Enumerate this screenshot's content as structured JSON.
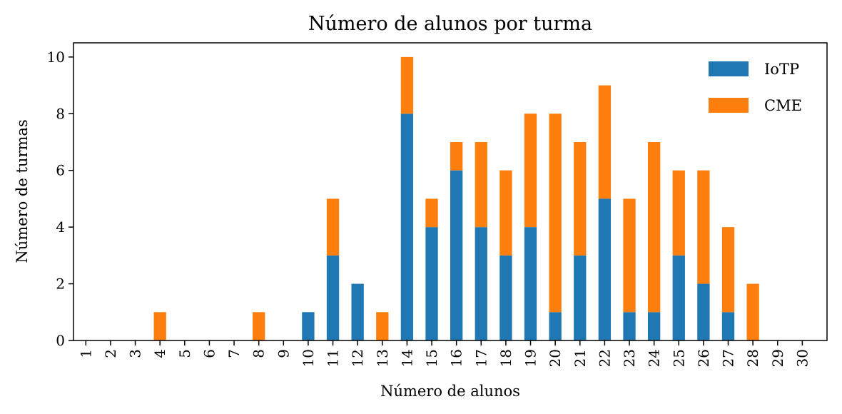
{
  "chart_data": {
    "type": "bar",
    "stacked": true,
    "title": "Número de alunos por turma",
    "xlabel": "Número de alunos",
    "ylabel": "Número de turmas",
    "categories": [
      "1",
      "2",
      "3",
      "4",
      "5",
      "6",
      "7",
      "8",
      "9",
      "10",
      "11",
      "12",
      "13",
      "14",
      "15",
      "16",
      "17",
      "18",
      "19",
      "20",
      "21",
      "22",
      "23",
      "24",
      "25",
      "26",
      "27",
      "28",
      "29",
      "30"
    ],
    "series": [
      {
        "name": "IoTP",
        "color": "#1f77b4",
        "values": [
          0,
          0,
          0,
          0,
          0,
          0,
          0,
          0,
          0,
          1,
          3,
          2,
          0,
          8,
          4,
          6,
          4,
          3,
          4,
          1,
          3,
          5,
          1,
          1,
          3,
          2,
          1,
          0,
          0,
          0
        ]
      },
      {
        "name": "CME",
        "color": "#ff7f0e",
        "values": [
          0,
          0,
          0,
          1,
          0,
          0,
          0,
          1,
          0,
          0,
          2,
          0,
          1,
          2,
          1,
          1,
          3,
          3,
          4,
          7,
          4,
          4,
          4,
          6,
          3,
          4,
          3,
          2,
          0,
          0
        ]
      }
    ],
    "ylim": [
      0,
      10.5
    ],
    "yticks": [
      0,
      2,
      4,
      6,
      8,
      10
    ],
    "legend_position": "top-right"
  }
}
